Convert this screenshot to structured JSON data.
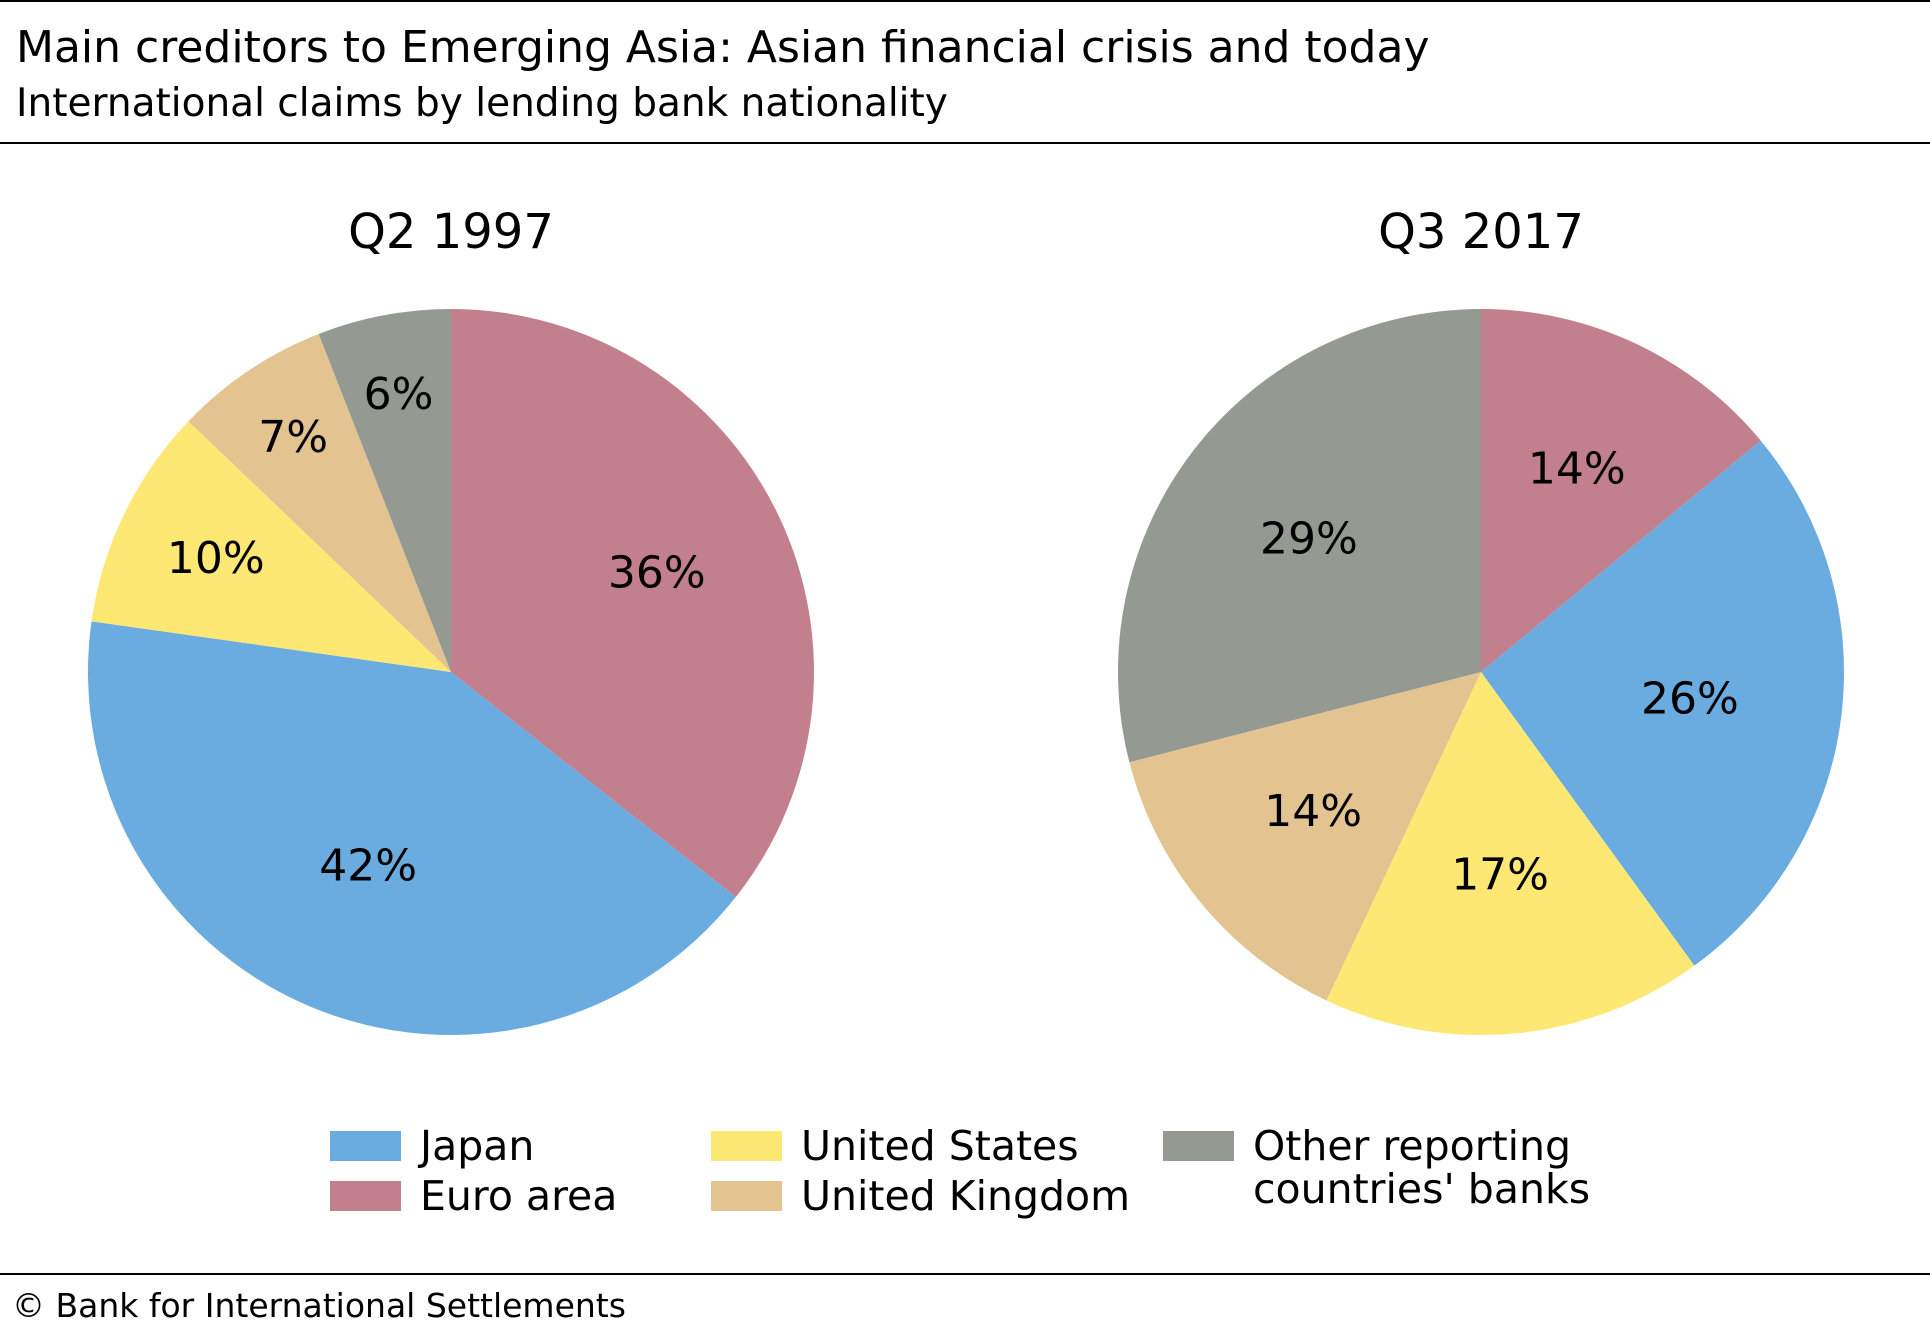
{
  "title": "Main creditors to Emerging Asia: Asian financial crisis and today",
  "subtitle": "International claims by lending bank nationality",
  "footer": "© Bank for International Settlements",
  "chart_data": [
    {
      "type": "pie",
      "title": "Q2 1997",
      "start": "12 o'clock, clockwise",
      "slices": [
        {
          "name": "Euro area",
          "value": 36,
          "label": "36%",
          "color": "#c27f8e"
        },
        {
          "name": "Japan",
          "value": 42,
          "label": "42%",
          "color": "#6aace0"
        },
        {
          "name": "United States",
          "value": 10,
          "label": "10%",
          "color": "#fde874"
        },
        {
          "name": "United Kingdom",
          "value": 7,
          "label": "7%",
          "color": "#e3c491"
        },
        {
          "name": "Other reporting countries' banks",
          "value": 6,
          "label": "6%",
          "color": "#949a91"
        }
      ]
    },
    {
      "type": "pie",
      "title": "Q3 2017",
      "start": "12 o'clock, clockwise",
      "slices": [
        {
          "name": "Euro area",
          "value": 14,
          "label": "14%",
          "color": "#c27f8e"
        },
        {
          "name": "Japan",
          "value": 26,
          "label": "26%",
          "color": "#6aace0"
        },
        {
          "name": "United States",
          "value": 17,
          "label": "17%",
          "color": "#fde874"
        },
        {
          "name": "United Kingdom",
          "value": 14,
          "label": "14%",
          "color": "#e3c491"
        },
        {
          "name": "Other reporting countries' banks",
          "value": 29,
          "label": "29%",
          "color": "#949a91"
        }
      ]
    }
  ],
  "legend": [
    {
      "label": "Japan",
      "color": "#6aace0"
    },
    {
      "label": "Euro area",
      "color": "#c27f8e"
    },
    {
      "label": "United States",
      "color": "#fde874"
    },
    {
      "label": "United Kingdom",
      "color": "#e3c491"
    },
    {
      "label_line1": "Other reporting",
      "label_line2": "countries' banks",
      "color": "#949a91"
    }
  ]
}
